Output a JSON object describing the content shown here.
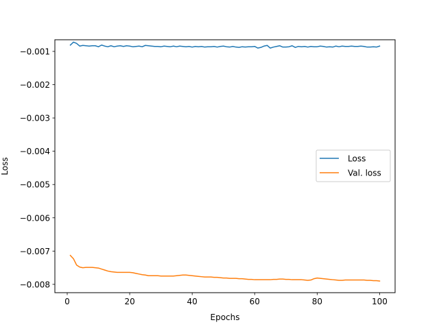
{
  "chart_data": {
    "type": "line",
    "title": "",
    "xlabel": "Epochs",
    "ylabel": "Loss",
    "xlim": [
      -3.95,
      104.95
    ],
    "ylim": [
      -0.00825,
      -0.00065
    ],
    "xticks": [
      0,
      20,
      40,
      60,
      80,
      100
    ],
    "xtick_labels": [
      "0",
      "20",
      "40",
      "60",
      "80",
      "100"
    ],
    "yticks": [
      -0.001,
      -0.002,
      -0.003,
      -0.004,
      -0.005,
      -0.006,
      -0.007,
      -0.008
    ],
    "ytick_labels": [
      "−0.001",
      "−0.002",
      "−0.003",
      "−0.004",
      "−0.005",
      "−0.006",
      "−0.007",
      "−0.008"
    ],
    "grid": false,
    "legend_position": "center-right",
    "x": [
      1,
      2,
      3,
      4,
      5,
      6,
      7,
      8,
      9,
      10,
      11,
      12,
      13,
      14,
      15,
      16,
      17,
      18,
      19,
      20,
      21,
      22,
      23,
      24,
      25,
      26,
      27,
      28,
      29,
      30,
      31,
      32,
      33,
      34,
      35,
      36,
      37,
      38,
      39,
      40,
      41,
      42,
      43,
      44,
      45,
      46,
      47,
      48,
      49,
      50,
      51,
      52,
      53,
      54,
      55,
      56,
      57,
      58,
      59,
      60,
      61,
      62,
      63,
      64,
      65,
      66,
      67,
      68,
      69,
      70,
      71,
      72,
      73,
      74,
      75,
      76,
      77,
      78,
      79,
      80,
      81,
      82,
      83,
      84,
      85,
      86,
      87,
      88,
      89,
      90,
      91,
      92,
      93,
      94,
      95,
      96,
      97,
      98,
      99,
      100
    ],
    "series": [
      {
        "name": "Loss",
        "color": "#1f77b4",
        "values": [
          -0.00081,
          -0.00072,
          -0.00076,
          -0.00084,
          -0.00082,
          -0.00083,
          -0.00084,
          -0.00083,
          -0.00083,
          -0.00086,
          -0.00081,
          -0.00084,
          -0.00086,
          -0.00083,
          -0.00086,
          -0.00084,
          -0.00083,
          -0.00085,
          -0.00083,
          -0.00084,
          -0.00086,
          -0.00085,
          -0.00084,
          -0.00086,
          -0.00082,
          -0.00083,
          -0.00084,
          -0.00085,
          -0.00085,
          -0.00086,
          -0.00084,
          -0.00085,
          -0.00086,
          -0.00084,
          -0.00086,
          -0.00084,
          -0.00085,
          -0.00086,
          -0.00085,
          -0.00087,
          -0.00085,
          -0.00086,
          -0.00085,
          -0.00087,
          -0.00086,
          -0.00086,
          -0.00085,
          -0.00087,
          -0.00085,
          -0.00084,
          -0.00086,
          -0.00087,
          -0.00085,
          -0.00087,
          -0.00088,
          -0.00086,
          -0.00087,
          -0.00086,
          -0.00086,
          -0.00085,
          -0.0009,
          -0.00088,
          -0.00084,
          -0.00082,
          -0.0009,
          -0.00087,
          -0.00085,
          -0.00083,
          -0.00087,
          -0.00087,
          -0.00086,
          -0.00083,
          -0.00088,
          -0.00085,
          -0.00086,
          -0.00085,
          -0.00087,
          -0.00085,
          -0.00086,
          -0.00086,
          -0.00084,
          -0.00085,
          -0.00087,
          -0.00086,
          -0.00087,
          -0.00084,
          -0.00086,
          -0.00084,
          -0.00085,
          -0.00085,
          -0.00084,
          -0.00085,
          -0.00085,
          -0.00084,
          -0.00085,
          -0.00087,
          -0.00087,
          -0.00086,
          -0.00087,
          -0.00084
        ]
      },
      {
        "name": "Val. loss",
        "color": "#ff7f0e",
        "values": [
          -0.00713,
          -0.00723,
          -0.00742,
          -0.00748,
          -0.0075,
          -0.00749,
          -0.00749,
          -0.00749,
          -0.0075,
          -0.00751,
          -0.00754,
          -0.00757,
          -0.0076,
          -0.00762,
          -0.00763,
          -0.00764,
          -0.00764,
          -0.00764,
          -0.00764,
          -0.00764,
          -0.00765,
          -0.00767,
          -0.00769,
          -0.00771,
          -0.00772,
          -0.00774,
          -0.00774,
          -0.00774,
          -0.00774,
          -0.00775,
          -0.00775,
          -0.00775,
          -0.00775,
          -0.00775,
          -0.00774,
          -0.00773,
          -0.00772,
          -0.00772,
          -0.00773,
          -0.00774,
          -0.00775,
          -0.00776,
          -0.00777,
          -0.00778,
          -0.00778,
          -0.00778,
          -0.00779,
          -0.00779,
          -0.0078,
          -0.00781,
          -0.00781,
          -0.00782,
          -0.00782,
          -0.00782,
          -0.00783,
          -0.00783,
          -0.00784,
          -0.00785,
          -0.00785,
          -0.00786,
          -0.00786,
          -0.00786,
          -0.00786,
          -0.00786,
          -0.00786,
          -0.00785,
          -0.00785,
          -0.00784,
          -0.00784,
          -0.00785,
          -0.00785,
          -0.00786,
          -0.00786,
          -0.00786,
          -0.00786,
          -0.00787,
          -0.00788,
          -0.00787,
          -0.00783,
          -0.00781,
          -0.00782,
          -0.00783,
          -0.00784,
          -0.00785,
          -0.00786,
          -0.00787,
          -0.00788,
          -0.00788,
          -0.00787,
          -0.00787,
          -0.00787,
          -0.00787,
          -0.00787,
          -0.00787,
          -0.00787,
          -0.00788,
          -0.00788,
          -0.00789,
          -0.00789,
          -0.0079
        ]
      }
    ]
  }
}
